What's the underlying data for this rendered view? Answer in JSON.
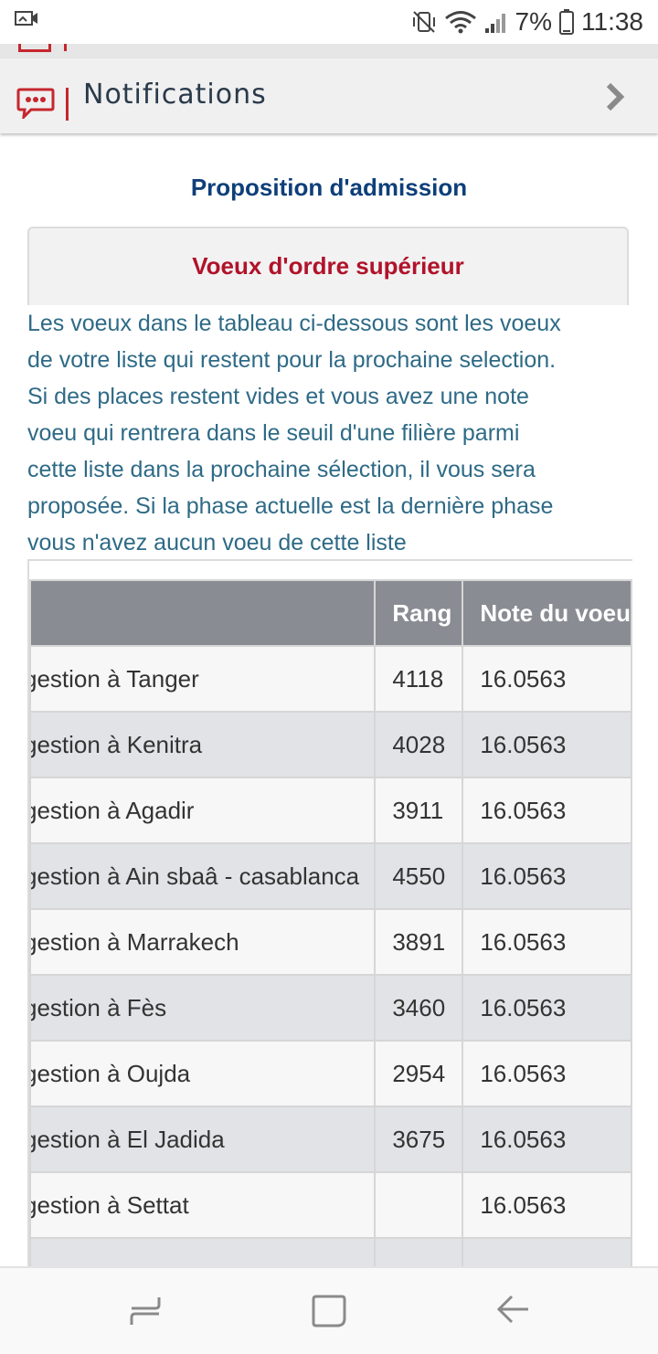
{
  "status_bar": {
    "battery": "7%",
    "time": "11:38",
    "icons": [
      "screen-cast-icon",
      "mute-vibrate-icon",
      "wifi-icon",
      "signal-icon",
      "battery-icon"
    ]
  },
  "menu": {
    "notifications_label": "Notifications",
    "icon": "chat-bubble-icon",
    "chevron": "chevron-right-icon"
  },
  "page": {
    "title": "Proposition d'admission",
    "panel_heading": "Voeux d'ordre supérieur",
    "description_lines": [
      "Les voeux dans le tableau ci-dessous sont les voeux",
      "de votre liste qui restent pour la prochaine selection.",
      "Si des places restent vides et vous avez une note",
      "voeu qui rentrera dans le seuil d'une filière parmi",
      "cette liste dans la prochaine sélection, il vous sera",
      "proposée. Si la phase actuelle est la dernière phase",
      "vous n'avez aucun voeu de cette liste"
    ]
  },
  "table": {
    "headers": [
      "",
      "Rang",
      "Note du voeu"
    ],
    "rows": [
      {
        "name": "gestion à Tanger",
        "rang": "4118",
        "note": "16.0563"
      },
      {
        "name": "gestion à Kenitra",
        "rang": "4028",
        "note": "16.0563"
      },
      {
        "name": "gestion à Agadir",
        "rang": "3911",
        "note": "16.0563"
      },
      {
        "name": "gestion à Ain sbaâ - casablanca",
        "rang": "4550",
        "note": "16.0563"
      },
      {
        "name": "gestion à Marrakech",
        "rang": "3891",
        "note": "16.0563"
      },
      {
        "name": "gestion à Fès",
        "rang": "3460",
        "note": "16.0563"
      },
      {
        "name": "gestion à Oujda",
        "rang": "2954",
        "note": "16.0563"
      },
      {
        "name": "gestion à El Jadida",
        "rang": "3675",
        "note": "16.0563"
      },
      {
        "name": "gestion à Settat",
        "rang": "",
        "note": "16.0563"
      },
      {
        "name": "",
        "rang": "",
        "note": ""
      }
    ]
  },
  "nav_bar": {
    "icons": [
      "recent-apps-icon",
      "home-icon",
      "back-icon"
    ]
  },
  "colors": {
    "brand_red": "#c6262e",
    "title_blue": "#0e3f7a",
    "text_teal": "#2e6a86",
    "header_gray": "#8a8c93"
  }
}
